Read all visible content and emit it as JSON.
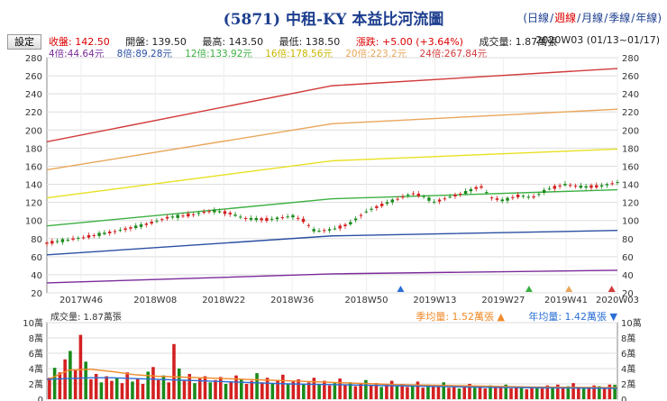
{
  "header": {
    "title": "(5871) 中租-KY 本益比河流圖",
    "periods": [
      "日線",
      "週線",
      "月線",
      "季線",
      "年線"
    ],
    "active_period": "週線"
  },
  "toolbar": {
    "settings_label": "設定"
  },
  "quote": {
    "close": "收盤: 142.50",
    "open": "開盤: 139.50",
    "high": "最高: 143.50",
    "low": "最低: 138.50",
    "change": "漲跌: +5.00 (+3.64%)",
    "volume": "成交量: 1.87萬張",
    "range": "2020W03 (01/13~01/17)"
  },
  "bands": [
    {
      "label": "4倍:44.64元",
      "color": "#7b2a9a"
    },
    {
      "label": "8倍:89.28元",
      "color": "#2b4fa3"
    },
    {
      "label": "12倍:133.92元",
      "color": "#3cb043"
    },
    {
      "label": "16倍:178.56元",
      "color": "#e8e020"
    },
    {
      "label": "20倍:223.2元",
      "color": "#e9a65a"
    },
    {
      "label": "24倍:267.84元",
      "color": "#d23a3a"
    }
  ],
  "volume_panel": {
    "label": "成交量: 1.87萬張",
    "quarter_avg": "季均量: 1.52萬張",
    "year_avg": "年均量: 1.42萬張"
  },
  "chart_data": {
    "type": "candlestick",
    "x_ticks": [
      "2017W46",
      "2018W08",
      "2018W22",
      "2018W36",
      "2018W50",
      "2019W13",
      "2019W27",
      "2019W41",
      "2020W03"
    ],
    "y_ticks": [
      20,
      40,
      60,
      80,
      100,
      120,
      140,
      160,
      180,
      200,
      220,
      240,
      260,
      280
    ],
    "ylim": [
      20,
      280
    ],
    "volume_ticks": [
      "0",
      "2萬",
      "4萬",
      "6萬",
      "8萬",
      "10萬"
    ],
    "volume_ylim": [
      0,
      10
    ],
    "river_lines": [
      {
        "name": "24倍",
        "color": "#d23a3a",
        "points": [
          [
            0,
            187
          ],
          [
            0.5,
            249
          ],
          [
            1,
            268
          ]
        ]
      },
      {
        "name": "20倍",
        "color": "#e9a65a",
        "points": [
          [
            0,
            156
          ],
          [
            0.5,
            207
          ],
          [
            1,
            223
          ]
        ]
      },
      {
        "name": "16倍",
        "color": "#e8e020",
        "points": [
          [
            0,
            125
          ],
          [
            0.5,
            166
          ],
          [
            1,
            179
          ]
        ]
      },
      {
        "name": "12倍",
        "color": "#3cb043",
        "points": [
          [
            0,
            94
          ],
          [
            0.5,
            124
          ],
          [
            1,
            134
          ]
        ]
      },
      {
        "name": "8倍",
        "color": "#2b4fa3",
        "points": [
          [
            0,
            62
          ],
          [
            0.5,
            83
          ],
          [
            1,
            89
          ]
        ]
      },
      {
        "name": "4倍",
        "color": "#7b2a9a",
        "points": [
          [
            0,
            31
          ],
          [
            0.5,
            41
          ],
          [
            1,
            45
          ]
        ]
      }
    ],
    "price_path": [
      [
        0,
        75
      ],
      [
        0.03,
        78
      ],
      [
        0.07,
        82
      ],
      [
        0.12,
        88
      ],
      [
        0.17,
        95
      ],
      [
        0.21,
        103
      ],
      [
        0.26,
        107
      ],
      [
        0.29,
        111
      ],
      [
        0.32,
        108
      ],
      [
        0.35,
        102
      ],
      [
        0.39,
        101
      ],
      [
        0.43,
        105
      ],
      [
        0.45,
        100
      ],
      [
        0.47,
        88
      ],
      [
        0.5,
        90
      ],
      [
        0.53,
        96
      ],
      [
        0.56,
        110
      ],
      [
        0.59,
        118
      ],
      [
        0.62,
        125
      ],
      [
        0.64,
        130
      ],
      [
        0.66,
        127
      ],
      [
        0.68,
        120
      ],
      [
        0.7,
        125
      ],
      [
        0.73,
        130
      ],
      [
        0.76,
        138
      ],
      [
        0.78,
        125
      ],
      [
        0.8,
        122
      ],
      [
        0.83,
        128
      ],
      [
        0.85,
        125
      ],
      [
        0.88,
        135
      ],
      [
        0.91,
        140
      ],
      [
        0.94,
        137
      ],
      [
        0.97,
        138
      ],
      [
        1,
        142
      ]
    ],
    "volume_values": [
      2.8,
      4.1,
      3.5,
      5.2,
      6.3,
      3.8,
      8.4,
      4.9,
      2.6,
      3.3,
      2.2,
      3.0,
      2.4,
      2.8,
      2.1,
      3.5,
      2.3,
      2.7,
      2.0,
      3.6,
      4.2,
      2.5,
      3.1,
      2.2,
      7.2,
      4.0,
      2.4,
      3.3,
      2.1,
      2.7,
      3.0,
      2.2,
      2.5,
      2.9,
      2.0,
      2.3,
      3.1,
      2.6,
      2.0,
      2.4,
      3.4,
      2.2,
      2.8,
      2.1,
      2.5,
      3.2,
      2.0,
      2.3,
      2.6,
      1.9,
      2.2,
      2.8,
      2.0,
      2.4,
      1.8,
      2.1,
      2.7,
      1.9,
      2.2,
      1.7,
      2.0,
      2.5,
      1.8,
      2.1,
      1.6,
      1.9,
      2.4,
      1.7,
      2.0,
      1.6,
      1.8,
      2.3,
      1.5,
      1.9,
      1.6,
      1.7,
      2.2,
      1.5,
      1.8,
      1.4,
      1.7,
      2.0,
      1.5,
      1.6,
      1.4,
      1.8,
      1.5,
      1.6,
      1.9,
      1.4,
      1.5,
      1.7,
      1.3,
      1.6,
      1.5,
      1.4,
      1.8,
      1.5,
      1.9,
      1.6,
      1.7,
      2.1,
      1.5,
      1.4,
      1.6,
      1.8,
      1.7,
      1.5,
      1.9,
      1.87
    ],
    "volume_avg_quarter": [
      2.5,
      3.8,
      3.9,
      3.6,
      3.2,
      3.0,
      2.9,
      2.8,
      2.7,
      2.6,
      2.5,
      2.4,
      2.3,
      2.2,
      2.1,
      2.0,
      1.9,
      1.85,
      1.8,
      1.75,
      1.7,
      1.65,
      1.6,
      1.58,
      1.55,
      1.53,
      1.52
    ],
    "volume_avg_year": [
      2.6,
      2.7,
      2.8,
      2.8,
      2.7,
      2.6,
      2.5,
      2.4,
      2.3,
      2.2,
      2.1,
      2.0,
      1.95,
      1.9,
      1.85,
      1.8,
      1.75,
      1.7,
      1.65,
      1.6,
      1.55,
      1.52,
      1.5,
      1.48,
      1.46,
      1.44,
      1.42
    ],
    "markers": [
      {
        "x": 0.62,
        "color": "#2b6fd6"
      },
      {
        "x": 0.845,
        "color": "#3cb043"
      },
      {
        "x": 0.915,
        "color": "#e9a65a"
      },
      {
        "x": 0.99,
        "color": "#d23a3a"
      }
    ]
  }
}
